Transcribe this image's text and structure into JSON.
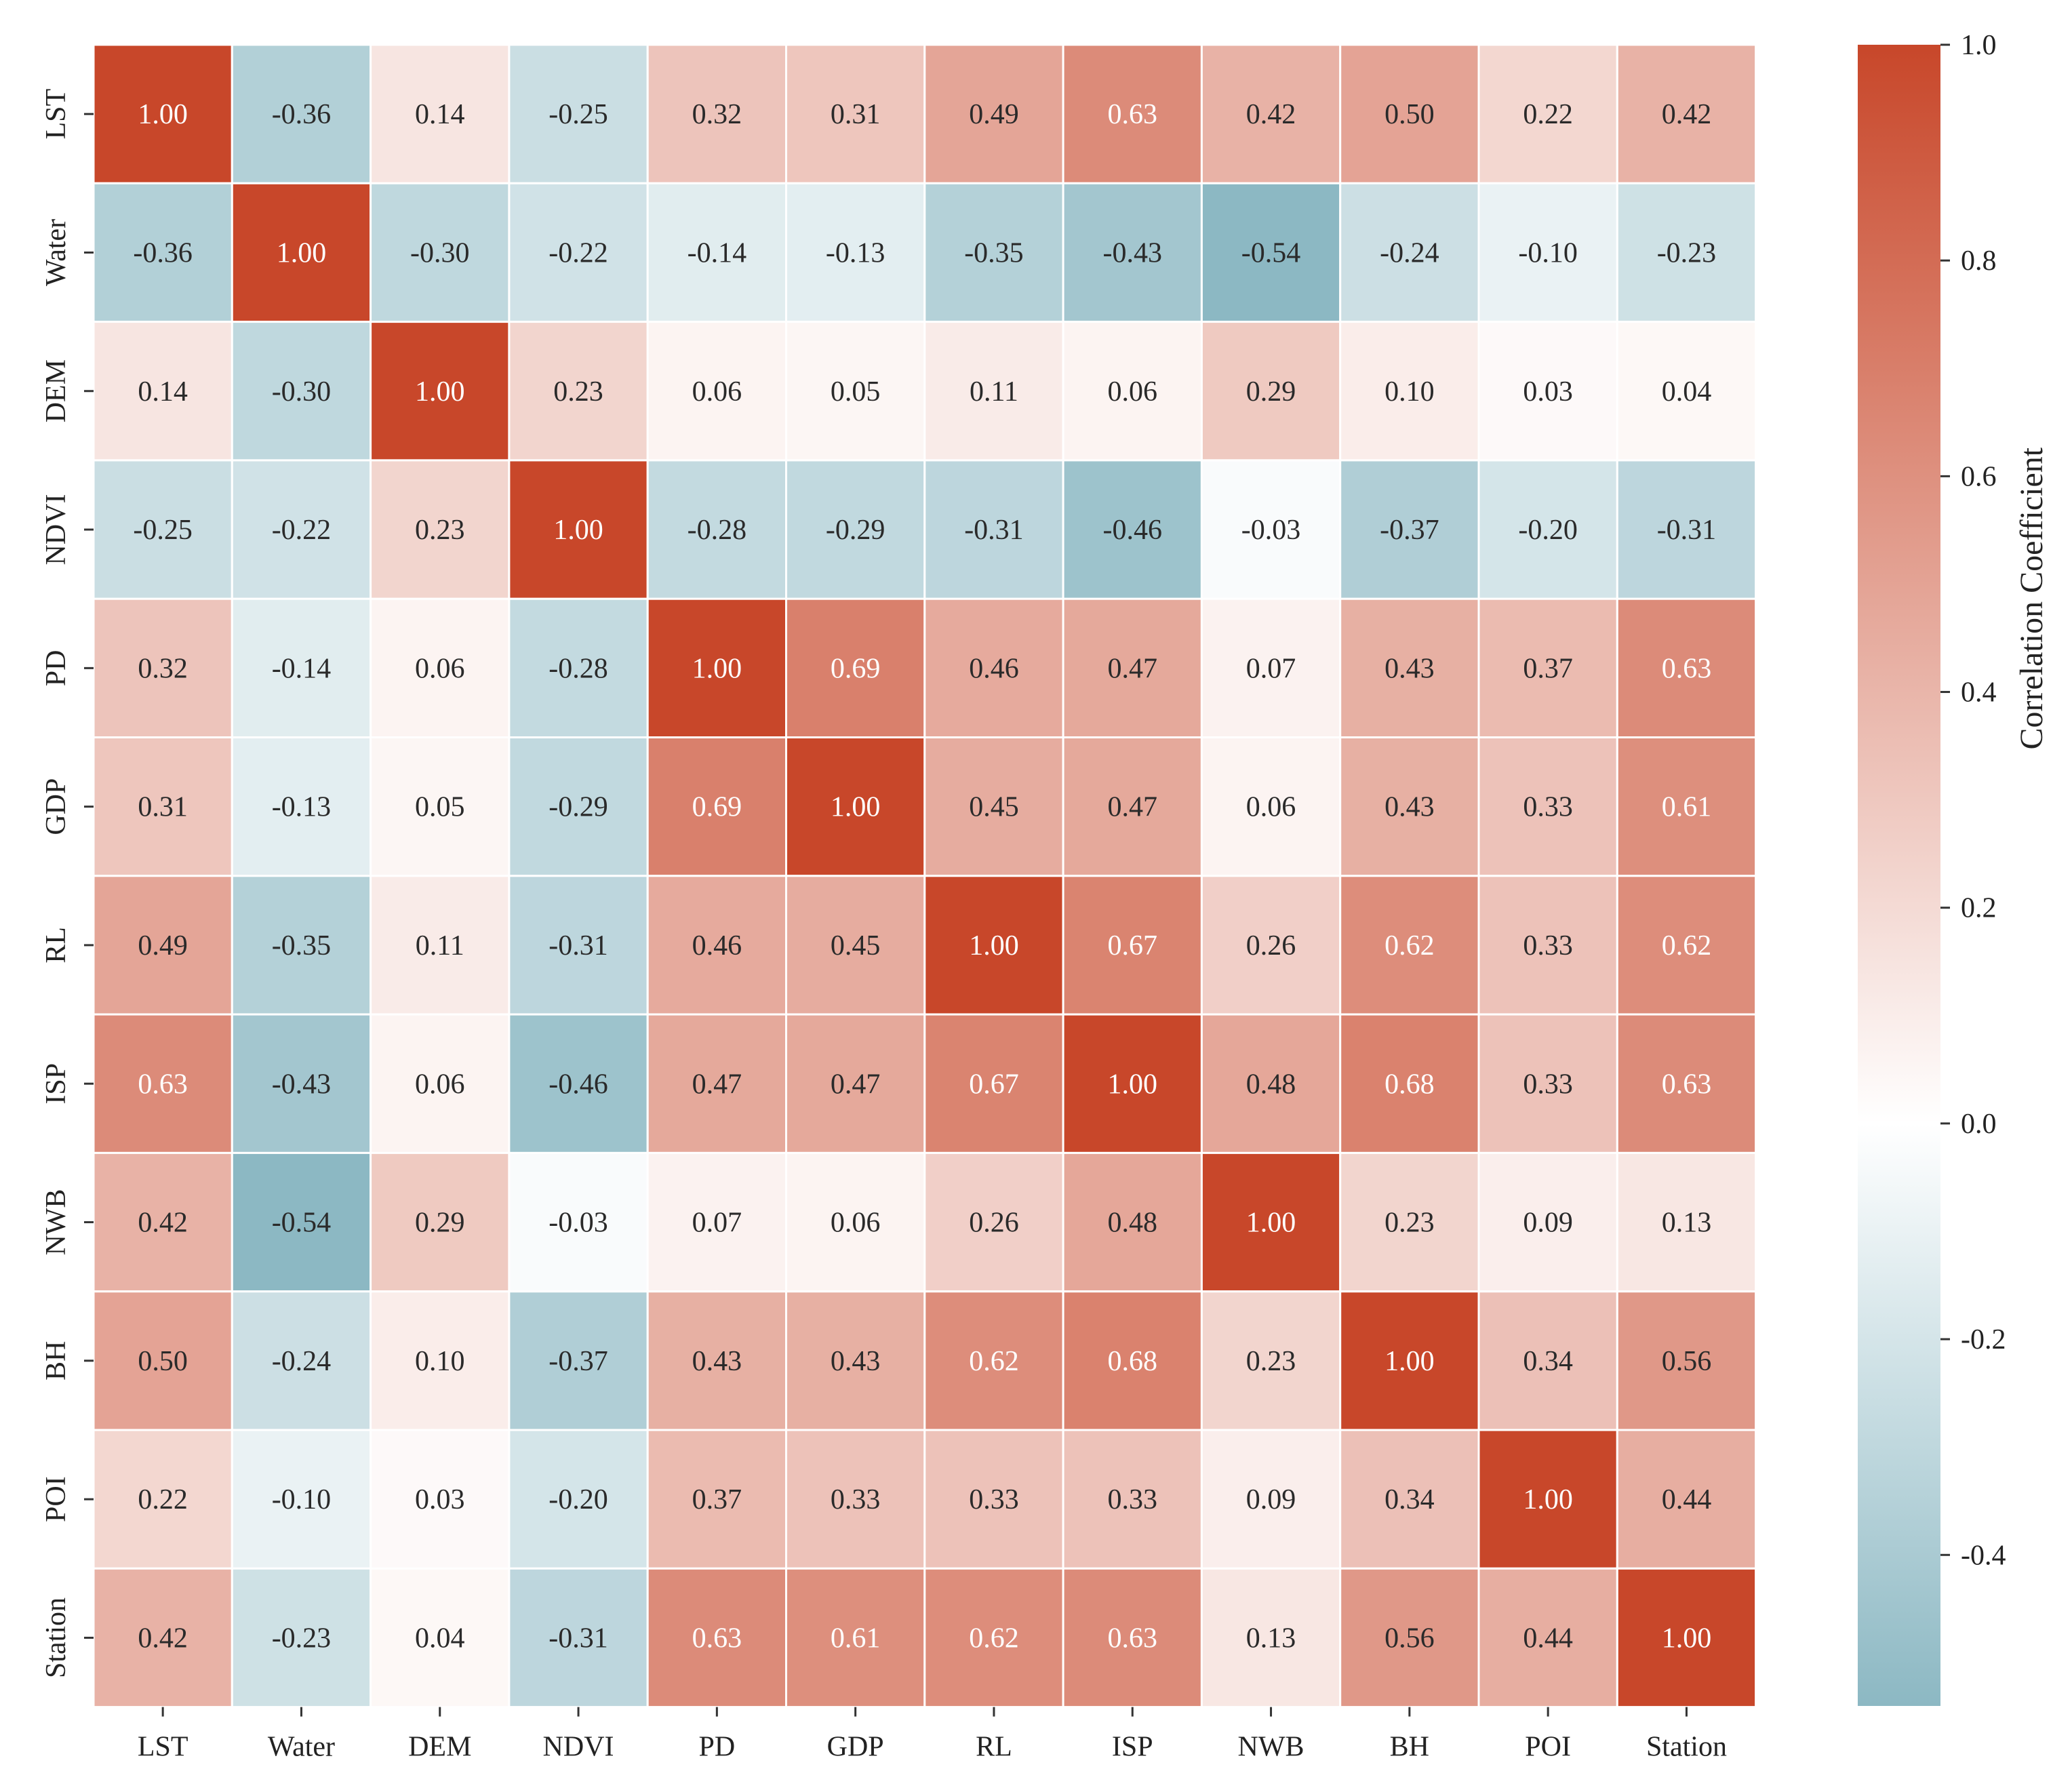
{
  "chart_data": {
    "type": "heatmap",
    "title": "",
    "xlabel": "",
    "ylabel": "",
    "x_labels": [
      "LST",
      "Water",
      "DEM",
      "NDVI",
      "PD",
      "GDP",
      "RL",
      "ISP",
      "NWB",
      "BH",
      "POI",
      "Station"
    ],
    "y_labels": [
      "LST",
      "Water",
      "DEM",
      "NDVI",
      "PD",
      "GDP",
      "RL",
      "ISP",
      "NWB",
      "BH",
      "POI",
      "Station"
    ],
    "values": [
      [
        1.0,
        -0.36,
        0.14,
        -0.25,
        0.32,
        0.31,
        0.49,
        0.63,
        0.42,
        0.5,
        0.22,
        0.42
      ],
      [
        -0.36,
        1.0,
        -0.3,
        -0.22,
        -0.14,
        -0.13,
        -0.35,
        -0.43,
        -0.54,
        -0.24,
        -0.1,
        -0.23
      ],
      [
        0.14,
        -0.3,
        1.0,
        0.23,
        0.06,
        0.05,
        0.11,
        0.06,
        0.29,
        0.1,
        0.03,
        0.04
      ],
      [
        -0.25,
        -0.22,
        0.23,
        1.0,
        -0.28,
        -0.29,
        -0.31,
        -0.46,
        -0.03,
        -0.37,
        -0.2,
        -0.31
      ],
      [
        0.32,
        -0.14,
        0.06,
        -0.28,
        1.0,
        0.69,
        0.46,
        0.47,
        0.07,
        0.43,
        0.37,
        0.63
      ],
      [
        0.31,
        -0.13,
        0.05,
        -0.29,
        0.69,
        1.0,
        0.45,
        0.47,
        0.06,
        0.43,
        0.33,
        0.61
      ],
      [
        0.49,
        -0.35,
        0.11,
        -0.31,
        0.46,
        0.45,
        1.0,
        0.67,
        0.26,
        0.62,
        0.33,
        0.62
      ],
      [
        0.63,
        -0.43,
        0.06,
        -0.46,
        0.47,
        0.47,
        0.67,
        1.0,
        0.48,
        0.68,
        0.33,
        0.63
      ],
      [
        0.42,
        -0.54,
        0.29,
        -0.03,
        0.07,
        0.06,
        0.26,
        0.48,
        1.0,
        0.23,
        0.09,
        0.13
      ],
      [
        0.5,
        -0.24,
        0.1,
        -0.37,
        0.43,
        0.43,
        0.62,
        0.68,
        0.23,
        1.0,
        0.34,
        0.56
      ],
      [
        0.22,
        -0.1,
        0.03,
        -0.2,
        0.37,
        0.33,
        0.33,
        0.33,
        0.09,
        0.34,
        1.0,
        0.44
      ],
      [
        0.42,
        -0.23,
        0.04,
        -0.31,
        0.63,
        0.61,
        0.62,
        0.63,
        0.13,
        0.56,
        0.44,
        1.0
      ]
    ],
    "value_format": "2 decimals",
    "colorbar": {
      "label": "Correlation Coefficient",
      "vmin": -0.54,
      "vmax": 1.0,
      "ticks": [
        1.0,
        0.8,
        0.6,
        0.4,
        0.2,
        0.0,
        -0.2,
        -0.4
      ],
      "tick_labels": [
        "1.0",
        "0.8",
        "0.6",
        "0.4",
        "0.2",
        "0.0",
        "-0.2",
        "-0.4"
      ],
      "colors": {
        "negative": "#8cb8c3",
        "neutral": "#ffffff",
        "positive": "#c8472a"
      }
    },
    "legend_position": "right"
  }
}
